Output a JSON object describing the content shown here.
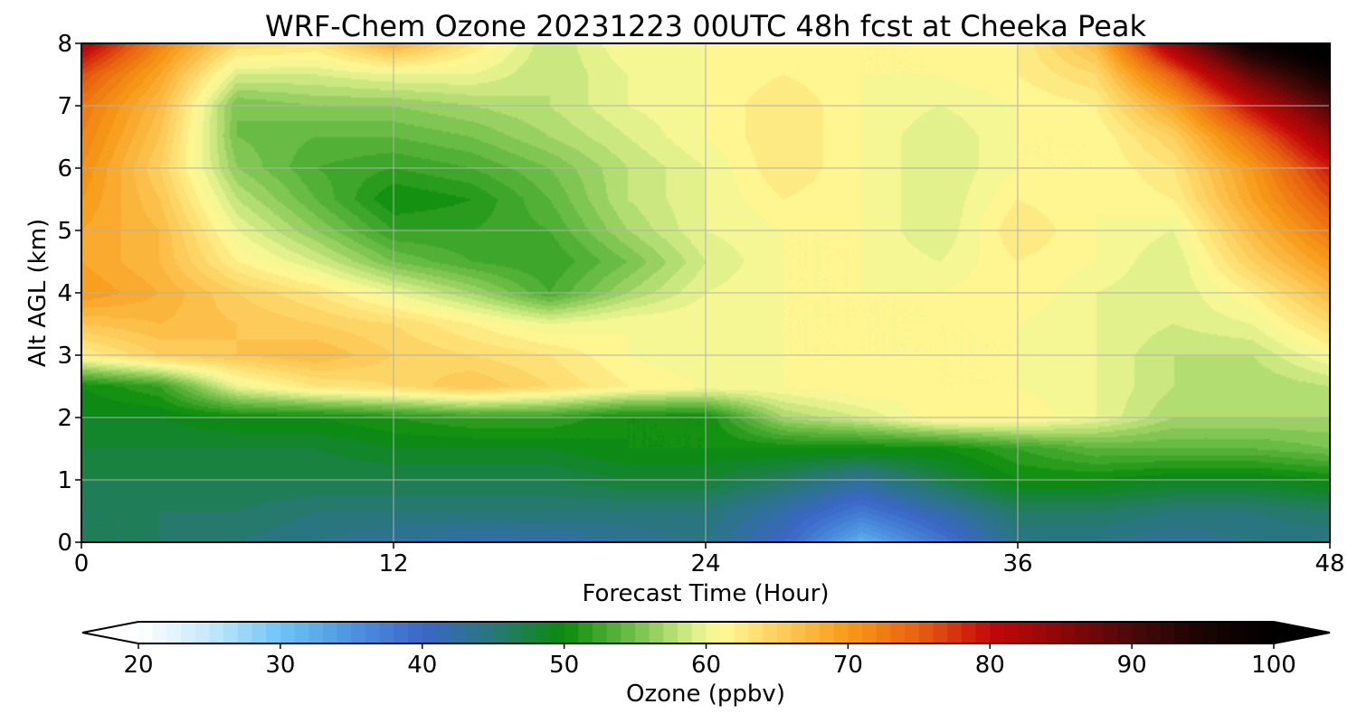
{
  "chart_data": {
    "type": "heatmap",
    "title": "WRF-Chem Ozone  20231223 00UTC 48h fcst at Cheeka Peak",
    "xlabel": "Forecast Time (Hour)",
    "ylabel": "Alt AGL (km)",
    "xlim": [
      0,
      48
    ],
    "ylim": [
      0,
      8
    ],
    "x_ticks": [
      0,
      12,
      24,
      36,
      48
    ],
    "y_ticks": [
      0,
      1,
      2,
      3,
      4,
      5,
      6,
      7,
      8
    ],
    "grid": true,
    "x": [
      0,
      3,
      6,
      9,
      12,
      15,
      18,
      21,
      24,
      27,
      30,
      33,
      36,
      39,
      42,
      45,
      48
    ],
    "y": [
      0,
      0.5,
      1,
      1.5,
      2,
      2.5,
      3,
      3.5,
      4,
      4.5,
      5,
      5.5,
      6,
      6.5,
      7,
      7.5,
      8
    ],
    "z": [
      [
        46,
        46,
        45,
        44,
        43,
        42,
        42,
        43,
        44,
        40,
        32,
        38,
        44,
        44,
        43,
        44,
        44
      ],
      [
        46,
        46,
        46,
        45,
        45,
        45,
        45,
        45,
        45,
        42,
        38,
        42,
        46,
        46,
        45,
        45,
        46
      ],
      [
        47,
        47,
        47,
        47,
        47,
        47,
        47,
        48,
        48,
        46,
        43,
        47,
        50,
        50,
        49,
        49,
        50
      ],
      [
        48,
        48,
        48,
        48,
        49,
        49,
        49,
        50,
        50,
        50,
        50,
        50,
        52,
        54,
        54,
        54,
        55
      ],
      [
        49,
        49,
        50,
        50,
        51,
        52,
        52,
        50,
        50,
        57,
        59,
        62,
        62,
        60,
        57,
        57,
        57
      ],
      [
        50,
        52,
        60,
        63,
        64,
        66,
        64,
        62,
        61,
        61,
        62,
        61,
        61,
        60,
        58,
        57,
        58
      ],
      [
        62,
        65,
        66,
        67,
        65,
        64,
        63,
        61,
        60,
        61,
        61,
        61,
        61,
        60,
        58,
        58,
        61
      ],
      [
        66,
        67,
        66,
        65,
        64,
        62,
        60,
        61,
        61,
        61,
        61,
        61,
        61,
        60,
        59,
        60,
        64
      ],
      [
        70,
        68,
        65,
        63,
        60,
        57,
        53,
        57,
        60,
        61,
        61,
        61,
        62,
        60,
        59,
        62,
        67
      ],
      [
        69,
        67,
        62,
        59,
        55,
        53,
        52,
        55,
        59,
        61,
        61,
        60,
        62,
        61,
        59,
        65,
        70
      ],
      [
        69,
        67,
        60,
        56,
        52,
        52,
        53,
        57,
        60,
        61,
        61,
        59,
        63,
        61,
        60,
        67,
        73
      ],
      [
        70,
        66,
        58,
        54,
        50,
        51,
        54,
        58,
        60,
        62,
        61,
        59,
        62,
        61,
        62,
        69,
        76
      ],
      [
        71,
        65,
        56,
        53,
        52,
        53,
        55,
        58,
        60,
        63,
        61,
        59,
        61,
        61,
        63,
        70,
        79
      ],
      [
        72,
        66,
        55,
        54,
        54,
        55,
        57,
        59,
        61,
        63,
        61,
        59,
        61,
        61,
        65,
        74,
        84
      ],
      [
        73,
        67,
        55,
        56,
        56,
        57,
        58,
        60,
        61,
        63,
        61,
        60,
        61,
        62,
        69,
        80,
        90
      ],
      [
        76,
        69,
        59,
        59,
        60,
        60,
        58,
        60,
        61,
        62,
        61,
        61,
        62,
        64,
        75,
        88,
        97
      ],
      [
        82,
        72,
        64,
        63,
        68,
        63,
        58,
        61,
        61,
        61,
        61,
        61,
        62,
        67,
        84,
        98,
        104
      ]
    ],
    "colorbar": {
      "label": "Ozone  (ppbv)",
      "min": 20,
      "max": 100,
      "ticks": [
        20,
        30,
        40,
        50,
        60,
        70,
        80,
        90,
        100
      ],
      "extend": "both",
      "position": "bottom",
      "color_stops": [
        {
          "v": 20,
          "c": "#ffffff"
        },
        {
          "v": 25,
          "c": "#c6e8fb"
        },
        {
          "v": 30,
          "c": "#6cc6f5"
        },
        {
          "v": 35,
          "c": "#4d94e0"
        },
        {
          "v": 40,
          "c": "#3a66c8"
        },
        {
          "v": 45,
          "c": "#287878"
        },
        {
          "v": 50,
          "c": "#0a8c0a"
        },
        {
          "v": 55,
          "c": "#72c04a"
        },
        {
          "v": 59,
          "c": "#d8ee88"
        },
        {
          "v": 61,
          "c": "#fffa98"
        },
        {
          "v": 65,
          "c": "#fdd060"
        },
        {
          "v": 70,
          "c": "#f89a18"
        },
        {
          "v": 75,
          "c": "#e86010"
        },
        {
          "v": 80,
          "c": "#c40808"
        },
        {
          "v": 85,
          "c": "#8c0808"
        },
        {
          "v": 90,
          "c": "#4a0808"
        },
        {
          "v": 95,
          "c": "#1a0404"
        },
        {
          "v": 100,
          "c": "#000000"
        }
      ]
    }
  }
}
